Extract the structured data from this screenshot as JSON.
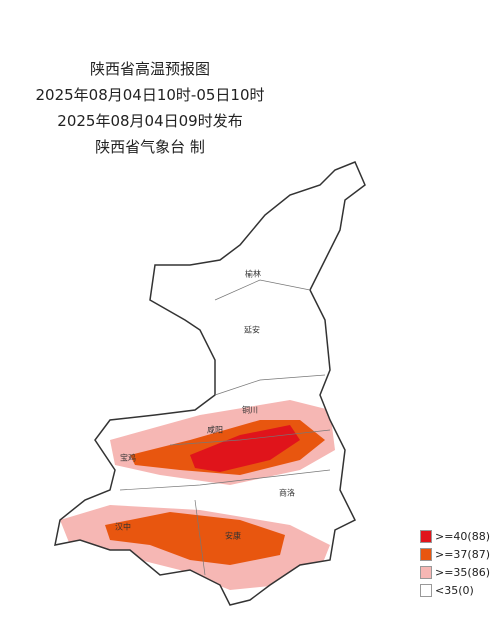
{
  "header": {
    "title": "陕西省高温预报图",
    "period": "2025年08月04日10时-05日10时",
    "issued": "2025年08月04日09时发布",
    "producer": "陕西省气象台 制"
  },
  "cities": [
    {
      "label": "榆林"
    },
    {
      "label": "延安"
    },
    {
      "label": "铜川"
    },
    {
      "label": "咸阳"
    },
    {
      "label": "宝鸡"
    },
    {
      "label": "商洛"
    },
    {
      "label": "汉中"
    },
    {
      "label": "安康"
    }
  ],
  "legend": [
    {
      "label": ">=40(88)",
      "color": "#e0141b"
    },
    {
      "label": ">=37(87)",
      "color": "#e8560f"
    },
    {
      "label": ">=35(86)",
      "color": "#f6b7b4"
    },
    {
      "label": "<35(0)",
      "color": "#ffffff"
    }
  ]
}
